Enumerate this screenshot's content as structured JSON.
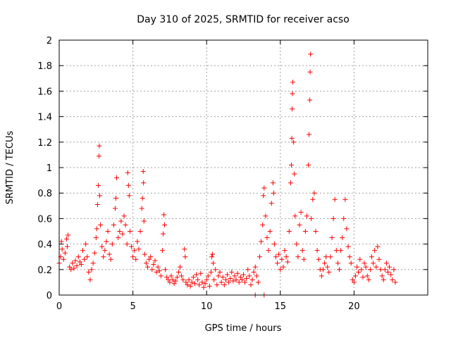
{
  "chart_data": {
    "type": "scatter",
    "title": "Day 310 of 2025, SRMTID for receiver acso",
    "xlabel": "GPS time / hours",
    "ylabel": "SRMTID / TECUs",
    "xlim": [
      0,
      25
    ],
    "ylim": [
      0,
      2
    ],
    "xticks": [
      0,
      5,
      10,
      15,
      20
    ],
    "xtick_labels": [
      "0",
      "5",
      "10",
      "15",
      "20"
    ],
    "yticks": [
      0,
      0.2,
      0.4,
      0.6,
      0.8,
      1,
      1.2,
      1.4,
      1.6,
      1.8,
      2
    ],
    "ytick_labels": [
      "0",
      "0.2",
      "0.4",
      "0.6",
      "0.8",
      "1",
      "1.2",
      "1.4",
      "1.6",
      "1.8",
      "2"
    ],
    "grid": true,
    "marker": "+",
    "color": "#ff0000",
    "series": [
      {
        "name": "SRMTID",
        "points": [
          [
            0.0,
            0.25
          ],
          [
            0.1,
            0.3
          ],
          [
            0.15,
            0.42
          ],
          [
            0.2,
            0.36
          ],
          [
            0.3,
            0.28
          ],
          [
            0.4,
            0.33
          ],
          [
            0.5,
            0.44
          ],
          [
            0.55,
            0.38
          ],
          [
            0.6,
            0.47
          ],
          [
            0.7,
            0.22
          ],
          [
            0.8,
            0.2
          ],
          [
            0.9,
            0.25
          ],
          [
            1.0,
            0.21
          ],
          [
            1.1,
            0.27
          ],
          [
            1.2,
            0.23
          ],
          [
            1.3,
            0.3
          ],
          [
            1.4,
            0.26
          ],
          [
            1.5,
            0.24
          ],
          [
            1.6,
            0.35
          ],
          [
            1.7,
            0.28
          ],
          [
            1.8,
            0.4
          ],
          [
            1.9,
            0.3
          ],
          [
            2.0,
            0.18
          ],
          [
            2.1,
            0.12
          ],
          [
            2.2,
            0.2
          ],
          [
            2.3,
            0.25
          ],
          [
            2.4,
            0.33
          ],
          [
            2.5,
            0.45
          ],
          [
            2.55,
            0.52
          ],
          [
            2.6,
            0.71
          ],
          [
            2.65,
            0.86
          ],
          [
            2.7,
            1.09
          ],
          [
            2.72,
            1.17
          ],
          [
            2.75,
            0.78
          ],
          [
            2.8,
            0.55
          ],
          [
            2.9,
            0.38
          ],
          [
            3.0,
            0.3
          ],
          [
            3.1,
            0.35
          ],
          [
            3.2,
            0.42
          ],
          [
            3.3,
            0.5
          ],
          [
            3.4,
            0.32
          ],
          [
            3.5,
            0.28
          ],
          [
            3.6,
            0.4
          ],
          [
            3.7,
            0.55
          ],
          [
            3.8,
            0.68
          ],
          [
            3.85,
            0.76
          ],
          [
            3.9,
            0.92
          ],
          [
            4.0,
            0.45
          ],
          [
            4.1,
            0.5
          ],
          [
            4.2,
            0.58
          ],
          [
            4.3,
            0.48
          ],
          [
            4.4,
            0.62
          ],
          [
            4.5,
            0.55
          ],
          [
            4.6,
            0.4
          ],
          [
            4.65,
            0.96
          ],
          [
            4.7,
            0.86
          ],
          [
            4.75,
            0.78
          ],
          [
            4.8,
            0.5
          ],
          [
            4.9,
            0.38
          ],
          [
            5.0,
            0.3
          ],
          [
            5.1,
            0.35
          ],
          [
            5.2,
            0.28
          ],
          [
            5.3,
            0.42
          ],
          [
            5.4,
            0.36
          ],
          [
            5.5,
            0.5
          ],
          [
            5.6,
            0.68
          ],
          [
            5.65,
            0.76
          ],
          [
            5.7,
            0.97
          ],
          [
            5.72,
            0.88
          ],
          [
            5.75,
            0.58
          ],
          [
            5.8,
            0.32
          ],
          [
            5.9,
            0.25
          ],
          [
            6.0,
            0.22
          ],
          [
            6.1,
            0.28
          ],
          [
            6.2,
            0.3
          ],
          [
            6.3,
            0.2
          ],
          [
            6.4,
            0.24
          ],
          [
            6.5,
            0.27
          ],
          [
            6.6,
            0.18
          ],
          [
            6.7,
            0.22
          ],
          [
            6.8,
            0.19
          ],
          [
            6.9,
            0.15
          ],
          [
            7.0,
            0.35
          ],
          [
            7.05,
            0.48
          ],
          [
            7.1,
            0.63
          ],
          [
            7.15,
            0.55
          ],
          [
            7.2,
            0.2
          ],
          [
            7.3,
            0.14
          ],
          [
            7.4,
            0.12
          ],
          [
            7.5,
            0.1
          ],
          [
            7.6,
            0.15
          ],
          [
            7.7,
            0.12
          ],
          [
            7.8,
            0.09
          ],
          [
            7.9,
            0.11
          ],
          [
            8.0,
            0.14
          ],
          [
            8.1,
            0.18
          ],
          [
            8.2,
            0.22
          ],
          [
            8.3,
            0.15
          ],
          [
            8.4,
            0.12
          ],
          [
            8.5,
            0.36
          ],
          [
            8.55,
            0.3
          ],
          [
            8.6,
            0.1
          ],
          [
            8.7,
            0.08
          ],
          [
            8.8,
            0.12
          ],
          [
            8.9,
            0.07
          ],
          [
            9.0,
            0.1
          ],
          [
            9.1,
            0.14
          ],
          [
            9.2,
            0.09
          ],
          [
            9.3,
            0.16
          ],
          [
            9.4,
            0.12
          ],
          [
            9.5,
            0.08
          ],
          [
            9.6,
            0.17
          ],
          [
            9.7,
            0.1
          ],
          [
            9.8,
            0.06
          ],
          [
            9.9,
            0.09
          ],
          [
            10.0,
            0.12
          ],
          [
            10.1,
            0.15
          ],
          [
            10.2,
            0.07
          ],
          [
            10.3,
            0.18
          ],
          [
            10.35,
            0.3
          ],
          [
            10.4,
            0.32
          ],
          [
            10.45,
            0.25
          ],
          [
            10.5,
            0.12
          ],
          [
            10.6,
            0.2
          ],
          [
            10.7,
            0.08
          ],
          [
            10.8,
            0.15
          ],
          [
            10.9,
            0.18
          ],
          [
            11.0,
            0.1
          ],
          [
            11.1,
            0.14
          ],
          [
            11.2,
            0.08
          ],
          [
            11.3,
            0.12
          ],
          [
            11.4,
            0.16
          ],
          [
            11.5,
            0.1
          ],
          [
            11.6,
            0.13
          ],
          [
            11.7,
            0.18
          ],
          [
            11.8,
            0.11
          ],
          [
            11.9,
            0.15
          ],
          [
            12.0,
            0.12
          ],
          [
            12.1,
            0.17
          ],
          [
            12.2,
            0.1
          ],
          [
            12.3,
            0.14
          ],
          [
            12.4,
            0.12
          ],
          [
            12.5,
            0.16
          ],
          [
            12.6,
            0.1
          ],
          [
            12.7,
            0.13
          ],
          [
            12.8,
            0.2
          ],
          [
            12.9,
            0.15
          ],
          [
            13.0,
            0.08
          ],
          [
            13.1,
            0.12
          ],
          [
            13.2,
            0.18
          ],
          [
            13.3,
            0.22
          ],
          [
            13.4,
            0.15
          ],
          [
            13.5,
            0.1
          ],
          [
            13.6,
            0.3
          ],
          [
            13.7,
            0.42
          ],
          [
            13.8,
            0.55
          ],
          [
            13.85,
            0.78
          ],
          [
            13.9,
            0.84
          ],
          [
            14.0,
            0.62
          ],
          [
            14.1,
            0.45
          ],
          [
            14.2,
            0.35
          ],
          [
            14.3,
            0.5
          ],
          [
            14.4,
            0.72
          ],
          [
            14.5,
            0.88
          ],
          [
            14.55,
            0.8
          ],
          [
            14.6,
            0.4
          ],
          [
            14.7,
            0.3
          ],
          [
            14.8,
            0.25
          ],
          [
            14.9,
            0.32
          ],
          [
            15.0,
            0.2
          ],
          [
            15.1,
            0.28
          ],
          [
            15.2,
            0.22
          ],
          [
            15.3,
            0.35
          ],
          [
            15.4,
            0.3
          ],
          [
            15.5,
            0.26
          ],
          [
            15.6,
            0.5
          ],
          [
            15.7,
            0.88
          ],
          [
            15.75,
            1.02
          ],
          [
            15.78,
            1.23
          ],
          [
            15.8,
            1.46
          ],
          [
            15.82,
            1.58
          ],
          [
            15.85,
            1.67
          ],
          [
            15.9,
            1.2
          ],
          [
            15.95,
            0.95
          ],
          [
            16.0,
            0.62
          ],
          [
            16.1,
            0.4
          ],
          [
            16.2,
            0.3
          ],
          [
            16.3,
            0.55
          ],
          [
            16.4,
            0.65
          ],
          [
            16.5,
            0.35
          ],
          [
            16.6,
            0.28
          ],
          [
            16.7,
            0.5
          ],
          [
            16.8,
            0.62
          ],
          [
            16.9,
            1.02
          ],
          [
            16.95,
            1.26
          ],
          [
            17.0,
            1.53
          ],
          [
            17.02,
            1.75
          ],
          [
            17.05,
            1.89
          ],
          [
            17.1,
            0.6
          ],
          [
            17.2,
            0.75
          ],
          [
            17.3,
            0.8
          ],
          [
            17.4,
            0.5
          ],
          [
            17.5,
            0.35
          ],
          [
            17.6,
            0.28
          ],
          [
            17.7,
            0.2
          ],
          [
            17.8,
            0.15
          ],
          [
            17.9,
            0.2
          ],
          [
            18.0,
            0.25
          ],
          [
            18.1,
            0.3
          ],
          [
            18.2,
            0.22
          ],
          [
            18.3,
            0.18
          ],
          [
            18.4,
            0.3
          ],
          [
            18.5,
            0.45
          ],
          [
            18.6,
            0.6
          ],
          [
            18.7,
            0.75
          ],
          [
            18.8,
            0.35
          ],
          [
            18.9,
            0.25
          ],
          [
            19.0,
            0.2
          ],
          [
            19.1,
            0.35
          ],
          [
            19.2,
            0.45
          ],
          [
            19.3,
            0.6
          ],
          [
            19.4,
            0.75
          ],
          [
            19.5,
            0.52
          ],
          [
            19.6,
            0.38
          ],
          [
            19.7,
            0.3
          ],
          [
            19.8,
            0.25
          ],
          [
            19.9,
            0.12
          ],
          [
            20.0,
            0.1
          ],
          [
            20.1,
            0.15
          ],
          [
            20.2,
            0.22
          ],
          [
            20.3,
            0.18
          ],
          [
            20.4,
            0.28
          ],
          [
            20.5,
            0.2
          ],
          [
            20.6,
            0.14
          ],
          [
            20.7,
            0.25
          ],
          [
            20.8,
            0.22
          ],
          [
            20.9,
            0.15
          ],
          [
            21.0,
            0.12
          ],
          [
            21.1,
            0.2
          ],
          [
            21.2,
            0.3
          ],
          [
            21.3,
            0.25
          ],
          [
            21.4,
            0.35
          ],
          [
            21.5,
            0.22
          ],
          [
            21.6,
            0.38
          ],
          [
            21.7,
            0.28
          ],
          [
            21.8,
            0.2
          ],
          [
            21.9,
            0.15
          ],
          [
            22.0,
            0.12
          ],
          [
            22.1,
            0.2
          ],
          [
            22.2,
            0.25
          ],
          [
            22.3,
            0.18
          ],
          [
            22.4,
            0.22
          ],
          [
            22.5,
            0.16
          ],
          [
            22.6,
            0.12
          ],
          [
            22.7,
            0.2
          ],
          [
            22.8,
            0.1
          ],
          [
            13.3,
            0.0
          ],
          [
            13.9,
            0.0
          ]
        ]
      }
    ]
  }
}
